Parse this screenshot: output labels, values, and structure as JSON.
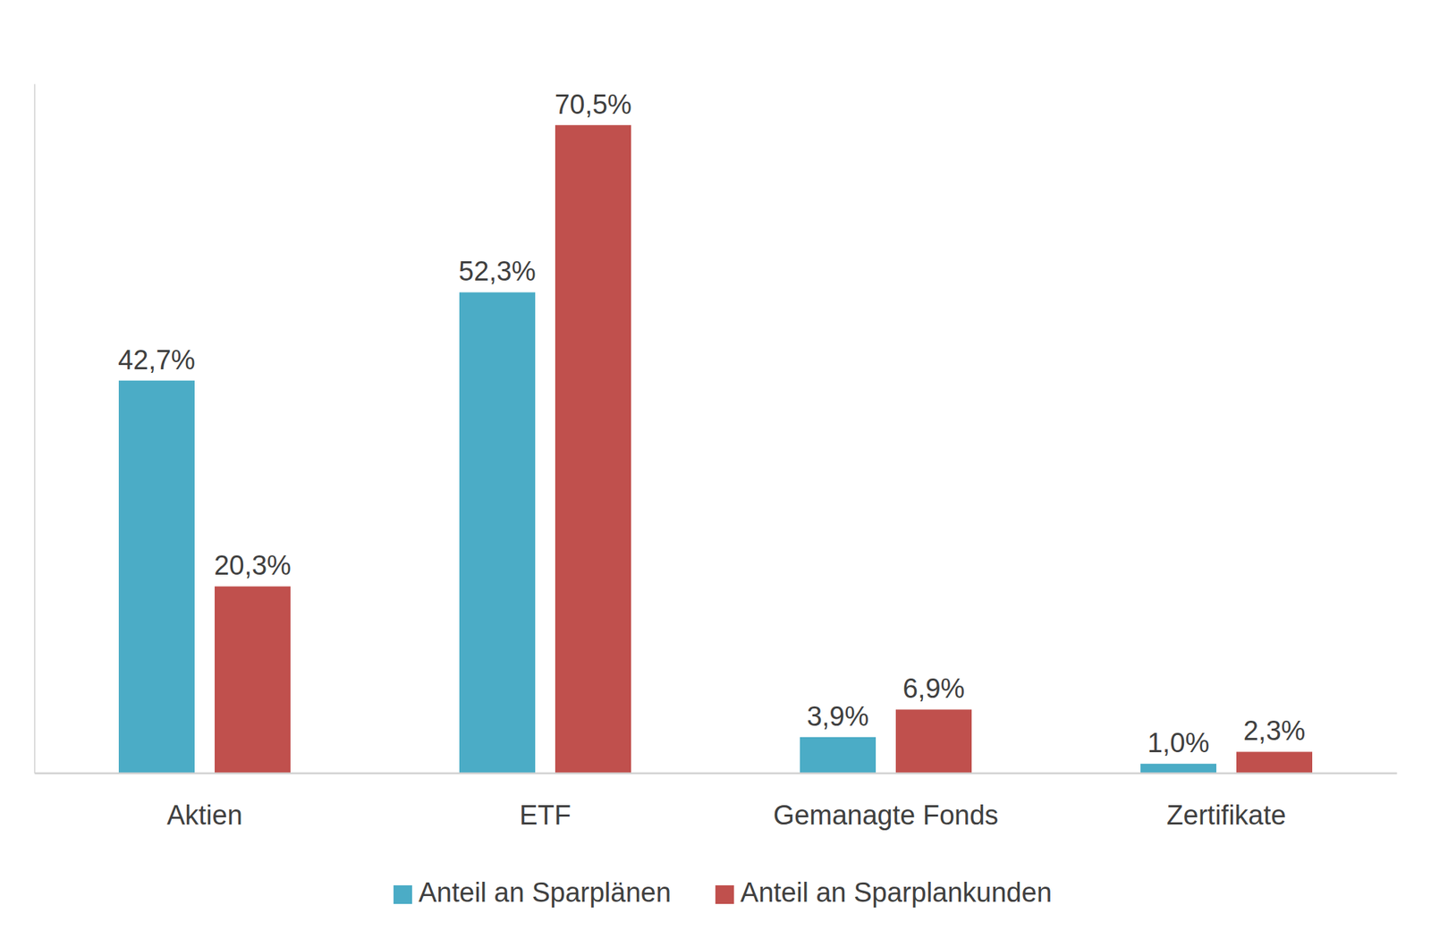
{
  "chart_data": {
    "type": "bar",
    "categories": [
      "Aktien",
      "ETF",
      "Gemanagte Fonds",
      "Zertifikate"
    ],
    "series": [
      {
        "name": "Anteil an Sparplänen",
        "color": "#4BACC6",
        "values": [
          42.7,
          52.3,
          3.9,
          1.0
        ],
        "value_labels": [
          "42,7%",
          "52,3%",
          "3,9%",
          "1,0%"
        ]
      },
      {
        "name": "Anteil an Sparplankunden",
        "color": "#C0504D",
        "values": [
          20.3,
          70.5,
          6.9,
          2.3
        ],
        "value_labels": [
          "20,3%",
          "70,5%",
          "6,9%",
          "2,3%"
        ]
      }
    ],
    "ylim": [
      0,
      75
    ],
    "data_labels": true,
    "tick_labels": "x",
    "grid": false,
    "legend": "bottom"
  }
}
